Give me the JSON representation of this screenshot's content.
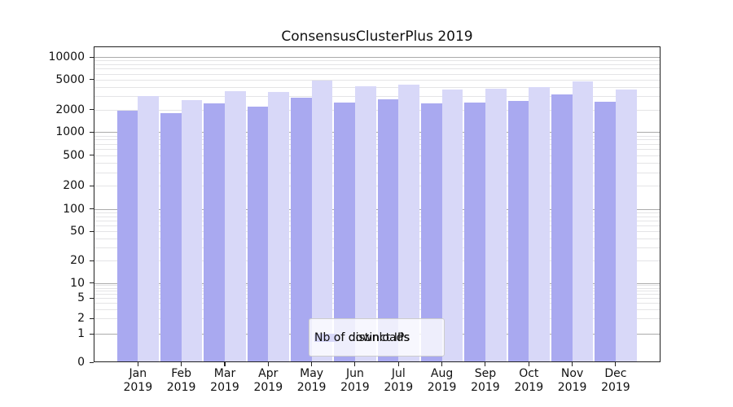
{
  "chart_data": {
    "type": "bar",
    "title": "ConsensusClusterPlus 2019",
    "categories": [
      "Jan",
      "Feb",
      "Mar",
      "Apr",
      "May",
      "Jun",
      "Jul",
      "Aug",
      "Sep",
      "Oct",
      "Nov",
      "Dec"
    ],
    "category_sub_label": "2019",
    "series": [
      {
        "name": "Nb of distinct IPs",
        "color": "#a9a9f0",
        "values": [
          1950,
          1800,
          2400,
          2200,
          2850,
          2500,
          2750,
          2400,
          2450,
          2600,
          3150,
          2550
        ]
      },
      {
        "name": "Nb of downloads",
        "color": "#d8d8f8",
        "values": [
          3000,
          2680,
          3500,
          3450,
          4900,
          4050,
          4300,
          3700,
          3750,
          3950,
          4700,
          3650
        ]
      }
    ],
    "y_axis": {
      "scale": "log-like (linear below 1)",
      "ticks": [
        0,
        1,
        2,
        5,
        10,
        20,
        50,
        100,
        200,
        500,
        1000,
        2000,
        5000,
        10000
      ],
      "ylim": [
        0,
        14000
      ]
    },
    "grid": {
      "orientation": "horizontal",
      "major_color": "#ababab",
      "minor_color": "#e4e4e6"
    },
    "legend": {
      "position": "lower center",
      "entries": [
        "Nb of distinct IPs",
        "Nb of downloads"
      ]
    }
  }
}
